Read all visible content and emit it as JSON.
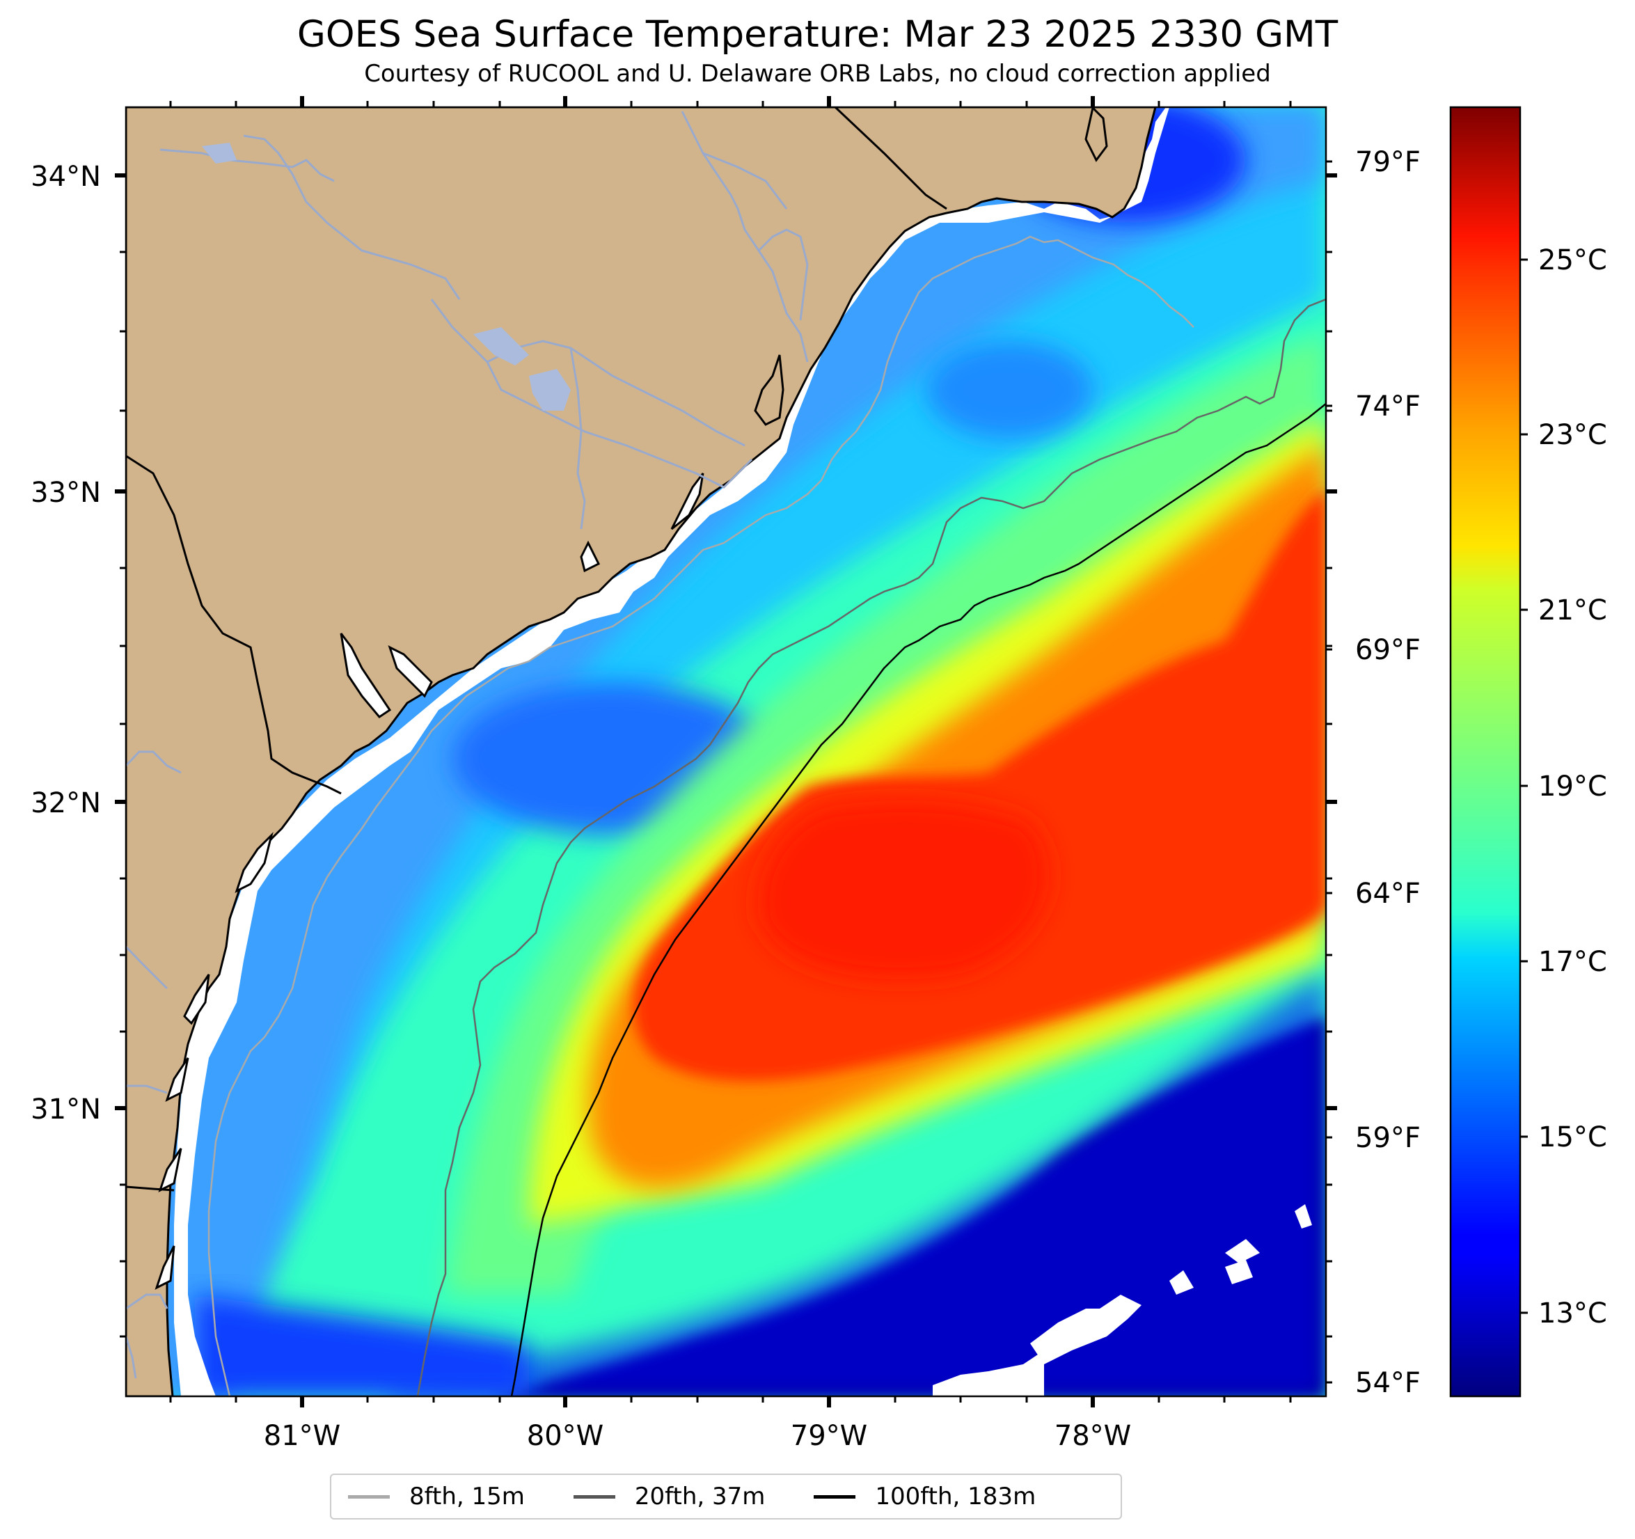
{
  "title": "GOES Sea Surface Temperature: Mar 23 2025 2330 GMT",
  "subtitle": "Courtesy of RUCOOL and U. Delaware ORB Labs, no cloud correction applied",
  "map": {
    "longitude_labels": [
      "81°W",
      "80°W",
      "79°W",
      "78°W"
    ],
    "latitude_labels": [
      "34°N",
      "33°N",
      "32°N",
      "31°N"
    ],
    "fahrenheit_labels": [
      "79°F",
      "74°F",
      "69°F",
      "64°F",
      "59°F",
      "54°F"
    ],
    "land_color": "#d2b48c",
    "nodata_color": "#ffffff",
    "extent": {
      "lon_min": -81.66,
      "lon_max": -77.1,
      "lat_min": 30.1,
      "lat_max": 34.22
    }
  },
  "colorbar": {
    "colormap": "jet",
    "range_c": [
      12.0,
      27.0
    ],
    "labels": [
      "25°C",
      "23°C",
      "21°C",
      "19°C",
      "17°C",
      "15°C",
      "13°C"
    ]
  },
  "legend": [
    {
      "label": "8fth, 15m",
      "color": "#aaaaaa"
    },
    {
      "label": "20fth, 37m",
      "color": "#555555"
    },
    {
      "label": "100fth, 183m",
      "color": "#000000"
    }
  ]
}
